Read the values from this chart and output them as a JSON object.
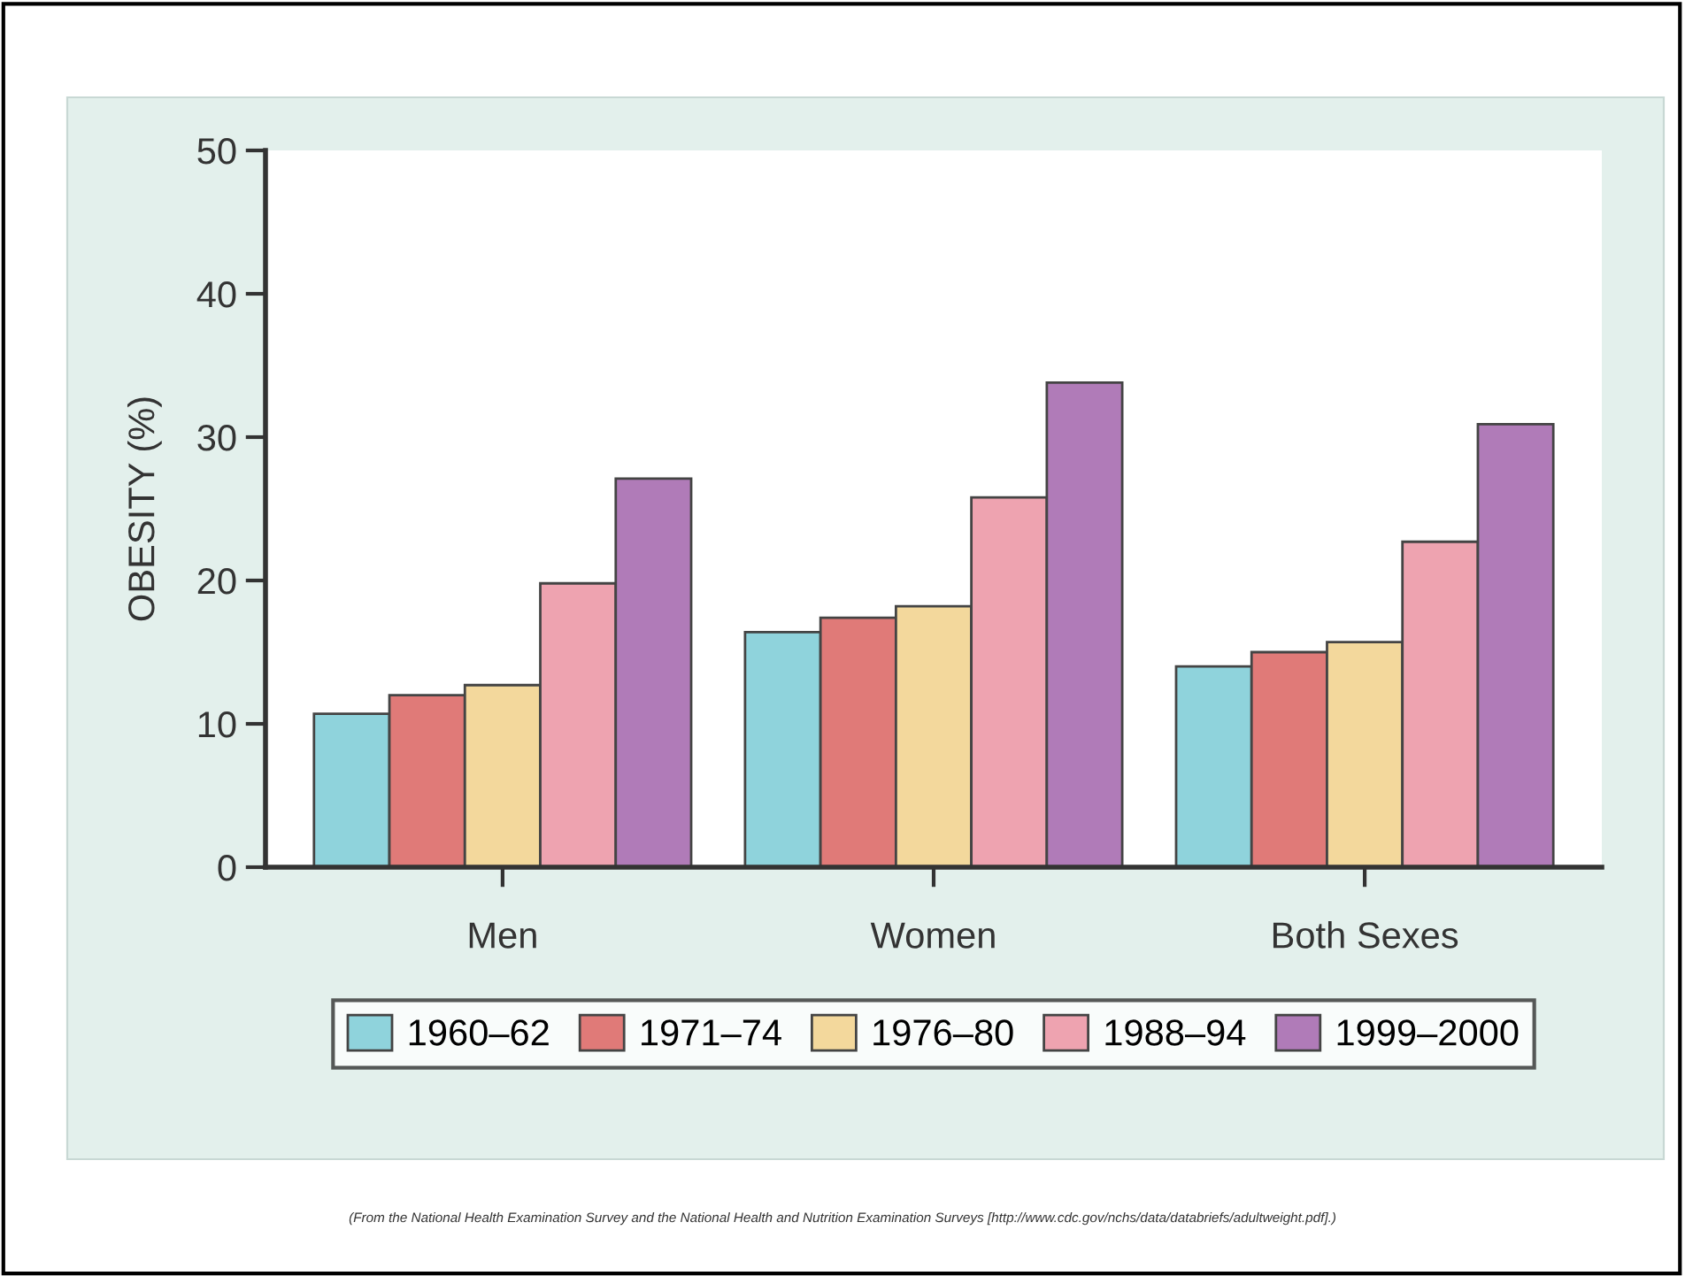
{
  "chart_data": {
    "type": "bar",
    "ylabel": "OBESITY (%)",
    "categories": [
      "Men",
      "Women",
      "Both Sexes"
    ],
    "series": [
      {
        "name": "1960–62",
        "color": "#8fd3dc",
        "values": [
          10.7,
          16.4,
          14.0
        ]
      },
      {
        "name": "1971–74",
        "color": "#e07a78",
        "values": [
          12.0,
          17.4,
          15.0
        ]
      },
      {
        "name": "1976–80",
        "color": "#f3d89c",
        "values": [
          12.7,
          18.2,
          15.7
        ]
      },
      {
        "name": "1988–94",
        "color": "#eea3b0",
        "values": [
          19.8,
          25.8,
          22.7
        ]
      },
      {
        "name": "1999–2000",
        "color": "#b07bb8",
        "values": [
          27.1,
          33.8,
          30.9
        ]
      }
    ],
    "ylim": [
      0,
      50
    ],
    "yticks": [
      0,
      10,
      20,
      30,
      40,
      50
    ],
    "grid": false,
    "legend": "bottom",
    "annotations": [
      "(From the National Health Examination Survey and the National Health and Nutrition Examination Surveys [http://www.cdc.gov/nchs/data/databriefs/adultweight.pdf].)"
    ]
  }
}
